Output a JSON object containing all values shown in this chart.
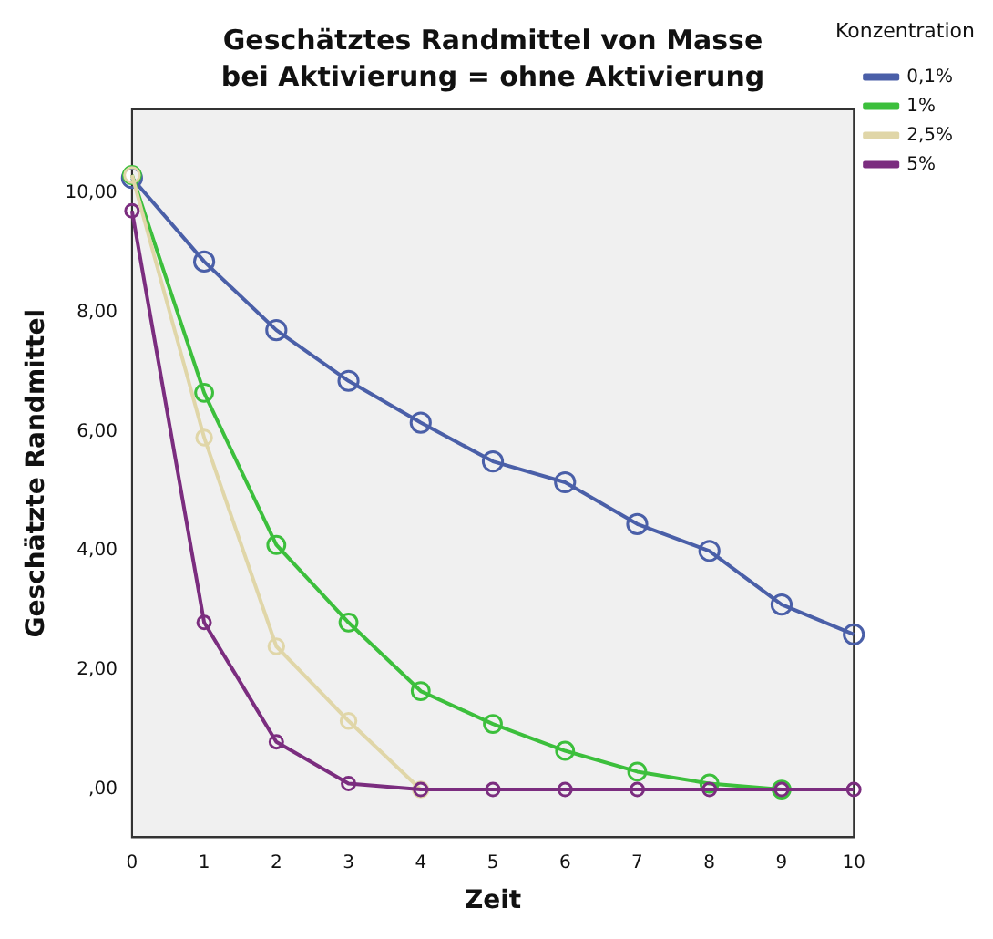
{
  "chart_data": {
    "type": "line",
    "title": "Geschätztes Randmittel von Masse",
    "subtitle": "bei Aktivierung = ohne Aktivierung",
    "xlabel": "Zeit",
    "ylabel": "Geschätzte Randmittel",
    "legend_title": "Konzentration",
    "categories": [
      "0",
      "1",
      "2",
      "3",
      "4",
      "5",
      "6",
      "7",
      "8",
      "9",
      "10"
    ],
    "series": [
      {
        "name": "0,1%",
        "color": "#4a5fa8",
        "values": [
          10.25,
          8.85,
          7.7,
          6.85,
          6.15,
          5.5,
          5.15,
          4.45,
          4.0,
          3.1,
          2.6
        ]
      },
      {
        "name": "1%",
        "color": "#3cbf3c",
        "values": [
          10.3,
          6.65,
          4.1,
          2.8,
          1.65,
          1.1,
          0.65,
          0.3,
          0.1,
          0,
          null
        ]
      },
      {
        "name": "2,5%",
        "color": "#e0d6a8",
        "values": [
          10.3,
          5.9,
          2.4,
          1.15,
          0,
          null,
          null,
          null,
          null,
          null,
          null
        ]
      },
      {
        "name": "5%",
        "color": "#7b2d7f",
        "values": [
          9.7,
          2.8,
          0.8,
          0.1,
          0,
          0,
          0,
          0,
          0,
          0,
          0
        ]
      }
    ],
    "ylim": [
      -0.8,
      11.4
    ],
    "yticks": [
      {
        "value": 0,
        "label": ",00"
      },
      {
        "value": 2,
        "label": "2,00"
      },
      {
        "value": 4,
        "label": "4,00"
      },
      {
        "value": 6,
        "label": "6,00"
      },
      {
        "value": 8,
        "label": "8,00"
      },
      {
        "value": 10,
        "label": "10,00"
      }
    ],
    "grid": false,
    "legend": "top right",
    "marker": "circle",
    "line_style": "solid"
  }
}
